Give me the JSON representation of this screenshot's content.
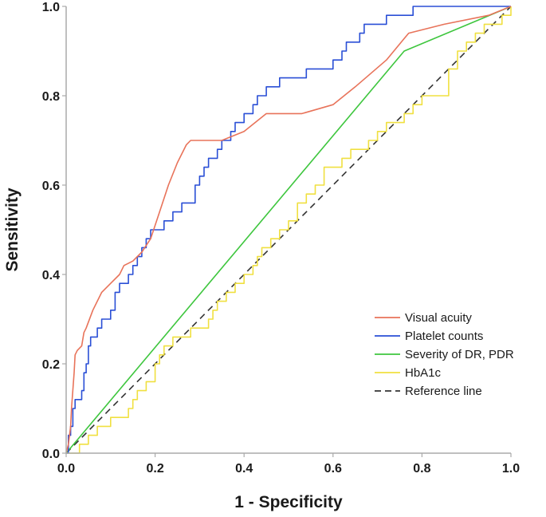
{
  "chart_data": {
    "type": "line",
    "title": "",
    "xlabel": "1 - Specificity",
    "ylabel": "Sensitivity",
    "xlim": [
      0,
      1
    ],
    "ylim": [
      0,
      1
    ],
    "xticks": [
      "0.0",
      "0.2",
      "0.4",
      "0.6",
      "0.8",
      "1.0"
    ],
    "yticks": [
      "0.0",
      "0.2",
      "0.4",
      "0.6",
      "0.8",
      "1.0"
    ],
    "grid": false,
    "legend_position": "bottom-right",
    "series": [
      {
        "name": "Visual acuity",
        "color": "#e8735a",
        "style": "solid",
        "x": [
          0,
          0.005,
          0.01,
          0.012,
          0.018,
          0.02,
          0.025,
          0.035,
          0.04,
          0.045,
          0.06,
          0.08,
          0.1,
          0.12,
          0.13,
          0.15,
          0.17,
          0.19,
          0.21,
          0.23,
          0.25,
          0.27,
          0.28,
          0.35,
          0.4,
          0.45,
          0.53,
          0.6,
          0.65,
          0.72,
          0.77,
          0.85,
          0.95,
          1.0
        ],
        "y": [
          0,
          0.02,
          0.06,
          0.1,
          0.18,
          0.22,
          0.23,
          0.24,
          0.27,
          0.28,
          0.32,
          0.36,
          0.38,
          0.4,
          0.42,
          0.43,
          0.45,
          0.48,
          0.54,
          0.6,
          0.65,
          0.69,
          0.7,
          0.7,
          0.72,
          0.76,
          0.76,
          0.78,
          0.82,
          0.88,
          0.94,
          0.96,
          0.98,
          1.0
        ]
      },
      {
        "name": "Platelet counts",
        "color": "#2a4fd6",
        "style": "step",
        "x": [
          0,
          0.005,
          0.01,
          0.015,
          0.02,
          0.025,
          0.035,
          0.04,
          0.045,
          0.05,
          0.055,
          0.06,
          0.07,
          0.08,
          0.09,
          0.1,
          0.11,
          0.12,
          0.13,
          0.14,
          0.15,
          0.16,
          0.17,
          0.18,
          0.19,
          0.2,
          0.22,
          0.24,
          0.25,
          0.26,
          0.28,
          0.29,
          0.3,
          0.31,
          0.32,
          0.33,
          0.34,
          0.35,
          0.36,
          0.37,
          0.38,
          0.39,
          0.4,
          0.41,
          0.42,
          0.43,
          0.44,
          0.45,
          0.46,
          0.47,
          0.48,
          0.5,
          0.52,
          0.54,
          0.56,
          0.58,
          0.6,
          0.62,
          0.63,
          0.65,
          0.66,
          0.67,
          0.7,
          0.72,
          0.74,
          0.76,
          0.78,
          0.9,
          1.0
        ],
        "y": [
          0,
          0.04,
          0.06,
          0.1,
          0.12,
          0.12,
          0.14,
          0.18,
          0.2,
          0.24,
          0.26,
          0.26,
          0.28,
          0.3,
          0.3,
          0.32,
          0.36,
          0.38,
          0.38,
          0.4,
          0.42,
          0.44,
          0.46,
          0.48,
          0.5,
          0.5,
          0.52,
          0.54,
          0.54,
          0.56,
          0.56,
          0.6,
          0.62,
          0.64,
          0.66,
          0.66,
          0.68,
          0.7,
          0.7,
          0.72,
          0.74,
          0.74,
          0.76,
          0.76,
          0.78,
          0.8,
          0.8,
          0.82,
          0.82,
          0.82,
          0.84,
          0.84,
          0.84,
          0.86,
          0.86,
          0.86,
          0.88,
          0.9,
          0.92,
          0.92,
          0.94,
          0.96,
          0.96,
          0.98,
          0.98,
          0.98,
          1.0,
          1.0,
          1.0
        ]
      },
      {
        "name": "Severity of DR, PDR",
        "color": "#3ec63e",
        "style": "solid",
        "x": [
          0,
          0.76,
          1.0
        ],
        "y": [
          0,
          0.9,
          1.0
        ]
      },
      {
        "name": "HbA1c",
        "color": "#f0e040",
        "style": "step",
        "x": [
          0,
          0.02,
          0.03,
          0.04,
          0.05,
          0.06,
          0.07,
          0.08,
          0.1,
          0.12,
          0.14,
          0.15,
          0.16,
          0.18,
          0.2,
          0.21,
          0.22,
          0.24,
          0.26,
          0.28,
          0.3,
          0.32,
          0.33,
          0.34,
          0.36,
          0.38,
          0.4,
          0.42,
          0.43,
          0.44,
          0.46,
          0.48,
          0.5,
          0.52,
          0.54,
          0.56,
          0.58,
          0.6,
          0.62,
          0.64,
          0.66,
          0.68,
          0.7,
          0.72,
          0.74,
          0.76,
          0.78,
          0.8,
          0.82,
          0.84,
          0.86,
          0.88,
          0.9,
          0.92,
          0.94,
          0.96,
          0.98,
          1.0
        ],
        "y": [
          0,
          0.0,
          0.02,
          0.02,
          0.04,
          0.04,
          0.06,
          0.06,
          0.08,
          0.08,
          0.1,
          0.12,
          0.14,
          0.16,
          0.2,
          0.22,
          0.24,
          0.26,
          0.26,
          0.28,
          0.28,
          0.3,
          0.32,
          0.34,
          0.36,
          0.38,
          0.4,
          0.42,
          0.44,
          0.46,
          0.48,
          0.5,
          0.52,
          0.56,
          0.58,
          0.6,
          0.64,
          0.64,
          0.66,
          0.68,
          0.68,
          0.7,
          0.72,
          0.74,
          0.74,
          0.76,
          0.78,
          0.8,
          0.8,
          0.8,
          0.86,
          0.9,
          0.92,
          0.94,
          0.96,
          0.96,
          0.98,
          1.0
        ]
      },
      {
        "name": "Reference line",
        "color": "#333333",
        "style": "dashed",
        "x": [
          0,
          1
        ],
        "y": [
          0,
          1
        ]
      }
    ]
  }
}
